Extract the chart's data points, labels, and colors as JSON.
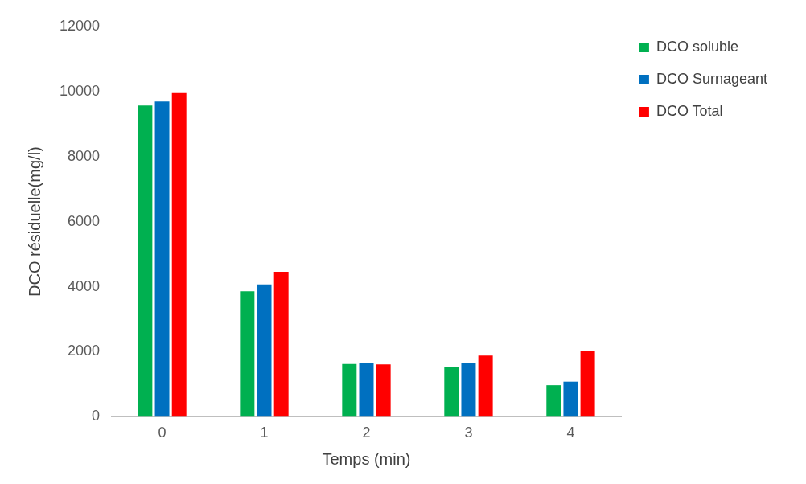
{
  "chart_data": {
    "type": "bar",
    "xlabel": "Temps (min)",
    "ylabel": "DCO résiduelle(mg/l)",
    "categories": [
      "0",
      "1",
      "2",
      "3",
      "4"
    ],
    "series": [
      {
        "name": "DCO soluble",
        "color": "#00b050",
        "values": [
          9570,
          3860,
          1620,
          1540,
          970
        ]
      },
      {
        "name": "DCO Surnageant",
        "color": "#0070c0",
        "values": [
          9690,
          4070,
          1660,
          1650,
          1080
        ]
      },
      {
        "name": "DCO Total",
        "color": "#ff0000",
        "values": [
          9950,
          4460,
          1610,
          1880,
          2020
        ]
      }
    ],
    "ylim": [
      0,
      12000
    ],
    "yticks": [
      0,
      2000,
      4000,
      6000,
      8000,
      10000,
      12000
    ],
    "grid": false,
    "legend": "right"
  }
}
